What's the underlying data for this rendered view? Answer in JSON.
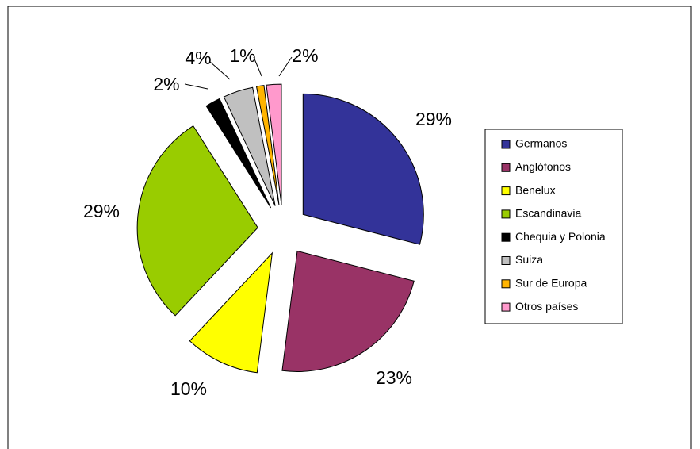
{
  "chart_data": {
    "type": "pie",
    "categories": [
      "Germanos",
      "Anglófonos",
      "Benelux",
      "Escandinavia",
      "Chequia y Polonia",
      "Suiza",
      "Sur de Europa",
      "Otros países"
    ],
    "values": [
      29,
      23,
      10,
      29,
      2,
      4,
      1,
      2
    ],
    "value_labels": [
      "29%",
      "23%",
      "10%",
      "29%",
      "2%",
      "4%",
      "1%",
      "2%"
    ],
    "colors": [
      "#333399",
      "#993366",
      "#ffff00",
      "#99cc00",
      "#000000",
      "#c0c0c0",
      "#ffb400",
      "#ff99cc"
    ],
    "legend": "right"
  }
}
